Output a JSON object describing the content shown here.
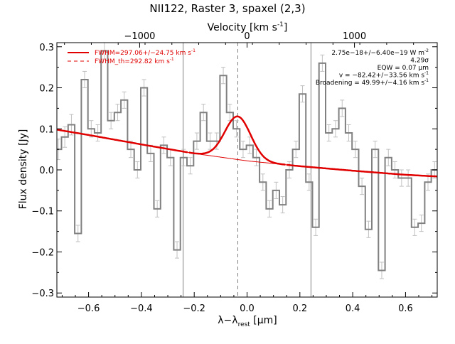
{
  "chart_data": {
    "type": "line",
    "title": "NII122, Raster 3, spaxel (2,3)",
    "xlabel": "λ−λ",
    "xlabel_sub": "rest",
    "xlabel_unit": " [μm]",
    "ylabel": "Flux density [Jy]",
    "top_axis_label": "Velocity [km s",
    "top_axis_label_exp": "-1",
    "top_axis_label_end": "]",
    "xlim": [
      -0.72,
      0.72
    ],
    "ylim": [
      -0.31,
      0.31
    ],
    "x_ticks": [
      -0.6,
      -0.4,
      -0.2,
      0.0,
      0.2,
      0.4,
      0.6
    ],
    "x_tick_labels": [
      "−0.6",
      "−0.4",
      "−0.2",
      "0.0",
      "0.2",
      "0.4",
      "0.6"
    ],
    "y_ticks": [
      -0.3,
      -0.2,
      -0.1,
      0.0,
      0.1,
      0.2,
      0.3
    ],
    "y_tick_labels": [
      "−0.3",
      "−0.2",
      "−0.1",
      "0.0",
      "0.1",
      "0.2",
      "0.3"
    ],
    "top_ticks_kms": [
      -1000,
      0,
      1000
    ],
    "top_tick_labels": [
      "−1000",
      "0",
      "1000"
    ],
    "vertical_lines_x": [
      -0.242,
      0.242
    ],
    "dashed_line_x": -0.035,
    "legend_placement": "top-left",
    "legend": [
      {
        "label": "FWHM=297.06+/−24.75 km s",
        "exp": "-1",
        "style": "solid"
      },
      {
        "label": "FWHM_th=292.82 km s",
        "exp": "-1",
        "style": "dashed"
      }
    ],
    "annotations": [
      {
        "text": "2.75e−18+/−6.40e−19 W m",
        "exp": "-2"
      },
      {
        "text": "4.29σ",
        "exp": ""
      },
      {
        "text": "EQW = 0.07 μm",
        "exp": ""
      },
      {
        "text": "v = −82.42+/−33.56 km s",
        "exp": "-1"
      },
      {
        "text": "Broadening = 49.99+/−4.16 km s",
        "exp": "-1"
      }
    ],
    "series": [
      {
        "kind": "spectrum_step",
        "x": [
          -0.715,
          -0.69,
          -0.665,
          -0.64,
          -0.615,
          -0.59,
          -0.565,
          -0.54,
          -0.515,
          -0.49,
          -0.465,
          -0.44,
          -0.415,
          -0.39,
          -0.365,
          -0.34,
          -0.315,
          -0.29,
          -0.265,
          -0.24,
          -0.215,
          -0.19,
          -0.165,
          -0.14,
          -0.115,
          -0.09,
          -0.065,
          -0.04,
          -0.015,
          0.01,
          0.035,
          0.06,
          0.085,
          0.11,
          0.135,
          0.16,
          0.185,
          0.21,
          0.235,
          0.26,
          0.285,
          0.31,
          0.335,
          0.36,
          0.385,
          0.41,
          0.435,
          0.46,
          0.485,
          0.51,
          0.535,
          0.56,
          0.585,
          0.61,
          0.635,
          0.66,
          0.685,
          0.71
        ],
        "y": [
          0.05,
          0.08,
          0.11,
          -0.155,
          0.22,
          0.1,
          0.09,
          0.29,
          0.12,
          0.14,
          0.17,
          0.05,
          0.0,
          0.2,
          0.04,
          -0.095,
          0.06,
          0.03,
          -0.195,
          0.03,
          0.01,
          0.07,
          0.14,
          0.07,
          0.07,
          0.23,
          0.14,
          0.1,
          0.05,
          0.06,
          0.03,
          -0.03,
          -0.095,
          -0.05,
          -0.085,
          0.0,
          0.05,
          0.185,
          -0.03,
          -0.14,
          0.26,
          0.09,
          0.1,
          0.15,
          0.09,
          0.05,
          -0.04,
          -0.145,
          0.05,
          -0.245,
          0.03,
          0.0,
          -0.02,
          -0.02,
          -0.14,
          -0.13,
          -0.03,
          0.0
        ],
        "yerr": [
          0.025,
          0.025,
          0.025,
          0.02,
          0.02,
          0.02,
          0.02,
          0.02,
          0.02,
          0.02,
          0.02,
          0.02,
          0.02,
          0.02,
          0.02,
          0.02,
          0.02,
          0.02,
          0.02,
          0.02,
          0.02,
          0.02,
          0.02,
          0.02,
          0.02,
          0.02,
          0.02,
          0.02,
          0.02,
          0.02,
          0.02,
          0.02,
          0.02,
          0.02,
          0.02,
          0.02,
          0.02,
          0.02,
          0.02,
          0.02,
          0.02,
          0.02,
          0.02,
          0.02,
          0.02,
          0.02,
          0.02,
          0.02,
          0.02,
          0.02,
          0.02,
          0.02,
          0.02,
          0.02,
          0.02,
          0.02,
          0.02,
          0.02
        ]
      },
      {
        "kind": "continuum",
        "baseline_points": [
          [
            -0.72,
            0.098
          ],
          [
            -0.6,
            0.085
          ],
          [
            -0.4,
            0.062
          ],
          [
            -0.2,
            0.04
          ],
          [
            0.0,
            0.022
          ],
          [
            0.2,
            0.009
          ],
          [
            0.4,
            -0.002
          ],
          [
            0.6,
            -0.012
          ],
          [
            0.72,
            -0.016
          ]
        ]
      },
      {
        "kind": "gaussian_fit",
        "center": -0.035,
        "amplitude": 0.105,
        "sigma": 0.049,
        "x_range": [
          -0.22,
          0.15
        ]
      }
    ],
    "colors": {
      "spectrum": "#808080",
      "errorbar": "#c0c0c0",
      "fit": "#e00000",
      "axes": "#000000"
    }
  }
}
